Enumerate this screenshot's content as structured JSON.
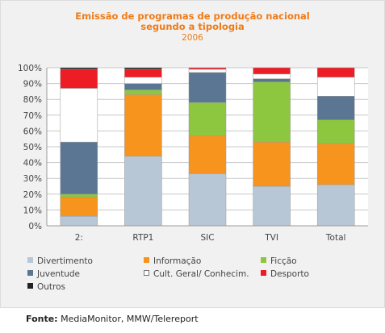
{
  "chart_data": {
    "type": "bar",
    "stacked": true,
    "title": "Emissão de programas de produção nacional",
    "title_line2": "segundo a tipologia",
    "subtitle": "2006",
    "categories": [
      "2:",
      "RTP1",
      "SIC",
      "TVI",
      "Total"
    ],
    "ylim": [
      0,
      100
    ],
    "yticks": [
      "0%",
      "10%",
      "20%",
      "30%",
      "40%",
      "50%",
      "60%",
      "70%",
      "80%",
      "90%",
      "100%"
    ],
    "grid": true,
    "legend_position": "bottom",
    "series": [
      {
        "name": "Divertimento",
        "color": "#b8c7d5",
        "values": [
          6,
          44,
          33,
          25,
          26
        ]
      },
      {
        "name": "Informação",
        "color": "#f7941d",
        "values": [
          12,
          39,
          24,
          28,
          26
        ]
      },
      {
        "name": "Ficção",
        "color": "#8dc63f",
        "values": [
          2,
          3,
          21,
          38,
          15
        ]
      },
      {
        "name": "Juventude",
        "color": "#5a7692",
        "values": [
          33,
          4,
          19,
          2,
          15
        ]
      },
      {
        "name": "Cult. Geral/ Conhecim.",
        "color": "#ffffff",
        "values": [
          34,
          4,
          2,
          3,
          12
        ]
      },
      {
        "name": "Desporto",
        "color": "#ee1c24",
        "values": [
          12,
          5,
          1,
          4,
          6
        ]
      },
      {
        "name": "Outros",
        "color": "#222222",
        "values": [
          1,
          1,
          0,
          0,
          0
        ]
      }
    ]
  },
  "source": {
    "label": "Fonte:",
    "text": "MediaMonitor, MMW/Telereport"
  }
}
